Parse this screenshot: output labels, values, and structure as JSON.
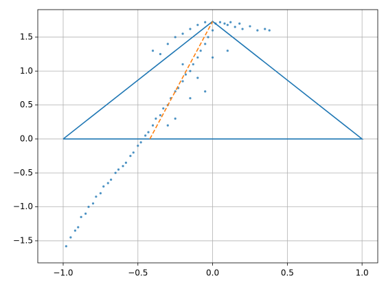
{
  "chart_data": {
    "type": "scatter",
    "xlim": [
      -1.17,
      1.105
    ],
    "ylim": [
      -1.825,
      1.905
    ],
    "xticks": [
      {
        "value": -1,
        "label": "−1.0"
      },
      {
        "value": -0.5,
        "label": "−0.5"
      },
      {
        "value": 0,
        "label": "0.0"
      },
      {
        "value": 0.5,
        "label": "0.5"
      },
      {
        "value": 1,
        "label": "1.0"
      }
    ],
    "yticks": [
      {
        "value": -1.5,
        "label": "−1.5"
      },
      {
        "value": -1,
        "label": "−1.0"
      },
      {
        "value": -0.5,
        "label": "−0.5"
      },
      {
        "value": 0,
        "label": "0.0"
      },
      {
        "value": 0.5,
        "label": "0.5"
      },
      {
        "value": 1,
        "label": "1.0"
      },
      {
        "value": 1.5,
        "label": "1.5"
      }
    ],
    "grid": true,
    "series": [
      {
        "type": "scatter",
        "color": "#1f77b4",
        "x": [
          -0.98,
          -0.95,
          -0.92,
          -0.9,
          -0.88,
          -0.85,
          -0.83,
          -0.8,
          -0.78,
          -0.75,
          -0.73,
          -0.7,
          -0.68,
          -0.65,
          -0.63,
          -0.6,
          -0.58,
          -0.55,
          -0.53,
          -0.5,
          -0.48,
          -0.45,
          -0.43,
          -0.4,
          -0.38,
          -0.35,
          -0.33,
          -0.3,
          -0.28,
          -0.25,
          -0.23,
          -0.2,
          -0.18,
          -0.15,
          -0.13,
          -0.1,
          -0.08,
          -0.05,
          -0.03,
          0.0,
          0.02,
          0.05,
          0.08,
          0.1,
          0.12,
          0.15,
          0.18,
          0.2,
          0.25,
          0.3,
          0.35,
          0.38,
          -0.4,
          -0.35,
          -0.3,
          -0.25,
          -0.2,
          -0.15,
          -0.1,
          -0.05,
          -0.2,
          -0.1,
          0.0,
          0.1,
          -0.15,
          -0.05,
          -0.3,
          -0.25
        ],
        "y": [
          -1.58,
          -1.45,
          -1.35,
          -1.3,
          -1.15,
          -1.1,
          -1.0,
          -0.95,
          -0.85,
          -0.8,
          -0.7,
          -0.65,
          -0.6,
          -0.5,
          -0.45,
          -0.4,
          -0.35,
          -0.25,
          -0.2,
          -0.1,
          -0.05,
          0.05,
          0.1,
          0.2,
          0.3,
          0.35,
          0.45,
          0.5,
          0.6,
          0.7,
          0.75,
          0.85,
          0.95,
          1.0,
          1.1,
          1.2,
          1.3,
          1.4,
          1.5,
          1.6,
          1.7,
          1.72,
          1.7,
          1.68,
          1.72,
          1.65,
          1.7,
          1.62,
          1.66,
          1.6,
          1.62,
          1.6,
          1.3,
          1.25,
          1.4,
          1.5,
          1.55,
          1.62,
          1.68,
          1.72,
          1.1,
          0.9,
          1.2,
          1.3,
          0.6,
          0.7,
          0.2,
          0.3
        ]
      },
      {
        "type": "line",
        "color": "#1f77b4",
        "x": [
          -1,
          0,
          1,
          -1
        ],
        "y": [
          0,
          1.732,
          0,
          0
        ]
      },
      {
        "type": "line",
        "color": "#ff7f0e",
        "dashed": true,
        "x": [
          -0.42,
          0
        ],
        "y": [
          0,
          1.732
        ]
      }
    ]
  }
}
